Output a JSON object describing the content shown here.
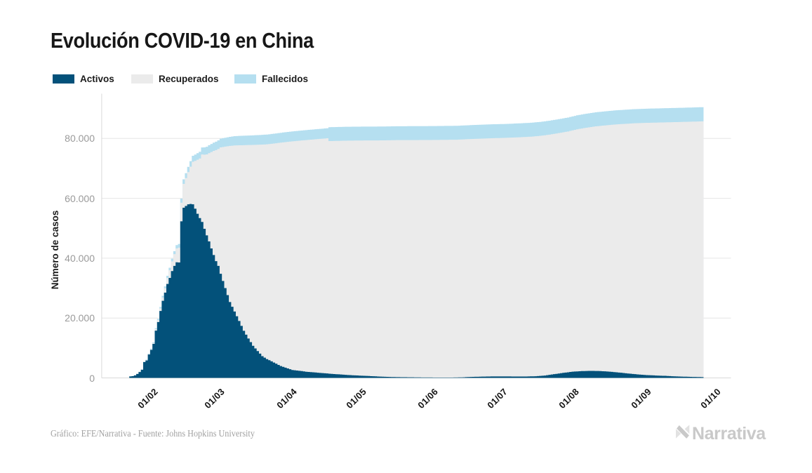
{
  "title": "Evolución COVID-19 en China",
  "legend": {
    "items": [
      {
        "label": "Activos",
        "color": "#03517a"
      },
      {
        "label": "Recuperados",
        "color": "#ebebeb"
      },
      {
        "label": "Fallecidos",
        "color": "#b5dff0"
      }
    ]
  },
  "y_axis": {
    "label": "Número de casos",
    "ticks": [
      "0",
      "20.000",
      "40.000",
      "60.000",
      "80.000"
    ],
    "tick_values": [
      0,
      20000,
      40000,
      60000,
      80000
    ]
  },
  "x_axis": {
    "ticks": [
      {
        "label": "01/02",
        "date": "2020-02-01"
      },
      {
        "label": "01/03",
        "date": "2020-03-01"
      },
      {
        "label": "01/04",
        "date": "2020-04-01"
      },
      {
        "label": "01/05",
        "date": "2020-05-01"
      },
      {
        "label": "01/06",
        "date": "2020-06-01"
      },
      {
        "label": "01/07",
        "date": "2020-07-01"
      },
      {
        "label": "01/08",
        "date": "2020-08-01"
      },
      {
        "label": "01/09",
        "date": "2020-09-01"
      },
      {
        "label": "01/10",
        "date": "2020-10-01"
      }
    ]
  },
  "footer": {
    "credit": "Gráfico: EFE/Narrativa - Fuente: Johns Hopkins University"
  },
  "logo": {
    "text": "Narrativa"
  },
  "chart_data": {
    "type": "bar",
    "stacked": true,
    "title": "Evolución COVID-19 en China",
    "xlabel": "",
    "ylabel": "Número de casos",
    "ylim": [
      0,
      95800
    ],
    "grid": "horizontal",
    "legend_position": "top-left",
    "dates": [
      "2020-01-22",
      "2020-01-23",
      "2020-01-24",
      "2020-01-25",
      "2020-01-26",
      "2020-01-27",
      "2020-01-28",
      "2020-01-29",
      "2020-01-30",
      "2020-01-31",
      "2020-02-01",
      "2020-02-02",
      "2020-02-03",
      "2020-02-04",
      "2020-02-05",
      "2020-02-06",
      "2020-02-07",
      "2020-02-08",
      "2020-02-09",
      "2020-02-10",
      "2020-02-11",
      "2020-02-12",
      "2020-02-13",
      "2020-02-14",
      "2020-02-15",
      "2020-02-16",
      "2020-02-17",
      "2020-02-18",
      "2020-02-19",
      "2020-02-20",
      "2020-02-21",
      "2020-02-22",
      "2020-02-23",
      "2020-02-24",
      "2020-02-25",
      "2020-02-26",
      "2020-02-27",
      "2020-02-28",
      "2020-02-29",
      "2020-03-01",
      "2020-03-02",
      "2020-03-03",
      "2020-03-04",
      "2020-03-05",
      "2020-03-06",
      "2020-03-07",
      "2020-03-08",
      "2020-03-09",
      "2020-03-10",
      "2020-03-11",
      "2020-03-12",
      "2020-03-13",
      "2020-03-14",
      "2020-03-15",
      "2020-03-16",
      "2020-03-17",
      "2020-03-18",
      "2020-03-19",
      "2020-03-20",
      "2020-03-21",
      "2020-03-22",
      "2020-03-23",
      "2020-03-24",
      "2020-03-25",
      "2020-03-26",
      "2020-03-27",
      "2020-03-28",
      "2020-03-29",
      "2020-03-30",
      "2020-03-31",
      "2020-04-01",
      "2020-04-02",
      "2020-04-03",
      "2020-04-04",
      "2020-04-05",
      "2020-04-06",
      "2020-04-07",
      "2020-04-08",
      "2020-04-09",
      "2020-04-10",
      "2020-04-11",
      "2020-04-12",
      "2020-04-13",
      "2020-04-14",
      "2020-04-15",
      "2020-04-16",
      "2020-04-17",
      "2020-04-18",
      "2020-04-19",
      "2020-04-20",
      "2020-04-21",
      "2020-04-22",
      "2020-04-23",
      "2020-04-24",
      "2020-04-25",
      "2020-04-26",
      "2020-04-27",
      "2020-04-28",
      "2020-04-29",
      "2020-04-30",
      "2020-05-01",
      "2020-05-02",
      "2020-05-03",
      "2020-05-04",
      "2020-05-05",
      "2020-05-06",
      "2020-05-07",
      "2020-05-08",
      "2020-05-09",
      "2020-05-10",
      "2020-05-11",
      "2020-05-12",
      "2020-05-13",
      "2020-05-14",
      "2020-05-15",
      "2020-05-16",
      "2020-05-17",
      "2020-05-18",
      "2020-05-19",
      "2020-05-20",
      "2020-05-21",
      "2020-05-22",
      "2020-05-23",
      "2020-05-24",
      "2020-05-25",
      "2020-05-26",
      "2020-05-27",
      "2020-05-28",
      "2020-05-29",
      "2020-05-30",
      "2020-05-31",
      "2020-06-01",
      "2020-06-02",
      "2020-06-03",
      "2020-06-04",
      "2020-06-05",
      "2020-06-06",
      "2020-06-07",
      "2020-06-08",
      "2020-06-09",
      "2020-06-10",
      "2020-06-11",
      "2020-06-12",
      "2020-06-13",
      "2020-06-14",
      "2020-06-15",
      "2020-06-16",
      "2020-06-17",
      "2020-06-18",
      "2020-06-19",
      "2020-06-20",
      "2020-06-21",
      "2020-06-22",
      "2020-06-23",
      "2020-06-24",
      "2020-06-25",
      "2020-06-26",
      "2020-06-27",
      "2020-06-28",
      "2020-06-29",
      "2020-06-30",
      "2020-07-01",
      "2020-07-02",
      "2020-07-03",
      "2020-07-04",
      "2020-07-05",
      "2020-07-06",
      "2020-07-07",
      "2020-07-08",
      "2020-07-09",
      "2020-07-10",
      "2020-07-11",
      "2020-07-12",
      "2020-07-13",
      "2020-07-14",
      "2020-07-15",
      "2020-07-16",
      "2020-07-17",
      "2020-07-18",
      "2020-07-19",
      "2020-07-20",
      "2020-07-21",
      "2020-07-22",
      "2020-07-23",
      "2020-07-24",
      "2020-07-25",
      "2020-07-26",
      "2020-07-27",
      "2020-07-28",
      "2020-07-29",
      "2020-07-30",
      "2020-07-31",
      "2020-08-01",
      "2020-08-02",
      "2020-08-03",
      "2020-08-04",
      "2020-08-05",
      "2020-08-06",
      "2020-08-07",
      "2020-08-08",
      "2020-08-09",
      "2020-08-10",
      "2020-08-11",
      "2020-08-12",
      "2020-08-13",
      "2020-08-14",
      "2020-08-15",
      "2020-08-16",
      "2020-08-17",
      "2020-08-18",
      "2020-08-19",
      "2020-08-20",
      "2020-08-21",
      "2020-08-22",
      "2020-08-23",
      "2020-08-24",
      "2020-08-25",
      "2020-08-26",
      "2020-08-27",
      "2020-08-28",
      "2020-08-29",
      "2020-08-30",
      "2020-08-31",
      "2020-09-01",
      "2020-09-02",
      "2020-09-03",
      "2020-09-04",
      "2020-09-05",
      "2020-09-06",
      "2020-09-07",
      "2020-09-08",
      "2020-09-09",
      "2020-09-10",
      "2020-09-11",
      "2020-09-12",
      "2020-09-13",
      "2020-09-14",
      "2020-09-15",
      "2020-09-16",
      "2020-09-17",
      "2020-09-18",
      "2020-09-19",
      "2020-09-20",
      "2020-09-21",
      "2020-09-22",
      "2020-09-23",
      "2020-09-24",
      "2020-09-25"
    ],
    "series": [
      {
        "name": "Activos",
        "color": "#03517a",
        "values": [
          503,
          595,
          858,
          1325,
          1970,
          2737,
          5277,
          5834,
          7835,
          9375,
          11357,
          15806,
          18677,
          22373,
          25762,
          28477,
          31393,
          33413,
          35705,
          37424,
          38638,
          38560,
          52309,
          56860,
          57452,
          57992,
          58108,
          58002,
          56541,
          54825,
          53389,
          52109,
          49824,
          47634,
          45604,
          43258,
          41075,
          39010,
          37414,
          34794,
          32399,
          30004,
          27678,
          25352,
          23764,
          22177,
          20596,
          19016,
          17378,
          15741,
          14456,
          13171,
          11952,
          10734,
          9850,
          8967,
          8115,
          7263,
          6775,
          6287,
          5918,
          5549,
          5142,
          4735,
          4341,
          3947,
          3692,
          3438,
          3172,
          2906,
          2640,
          2554,
          2467,
          2381,
          2274,
          2166,
          2059,
          1994,
          1928,
          1863,
          1802,
          1742,
          1681,
          1615,
          1549,
          1483,
          1418,
          1354,
          1289,
          1238,
          1188,
          1137,
          1083,
          1029,
          975,
          933,
          892,
          850,
          812,
          774,
          736,
          702,
          668,
          634,
          600,
          558,
          515,
          472,
          430,
          402,
          375,
          348,
          320,
          302,
          285,
          268,
          250,
          240,
          230,
          220,
          210,
          202,
          195,
          188,
          180,
          170,
          160,
          150,
          140,
          137,
          133,
          130,
          126,
          122,
          119,
          115,
          119,
          122,
          126,
          130,
          142,
          155,
          168,
          180,
          215,
          250,
          285,
          320,
          345,
          370,
          395,
          420,
          435,
          450,
          465,
          480,
          486,
          492,
          499,
          505,
          502,
          500,
          498,
          495,
          486,
          478,
          469,
          460,
          462,
          465,
          468,
          470,
          492,
          515,
          538,
          560,
          620,
          680,
          740,
          800,
          912,
          1025,
          1138,
          1250,
          1362,
          1475,
          1588,
          1700,
          1795,
          1890,
          1985,
          2080,
          2130,
          2180,
          2230,
          2280,
          2298,
          2315,
          2332,
          2350,
          2335,
          2320,
          2305,
          2290,
          2238,
          2185,
          2132,
          2080,
          2010,
          1940,
          1870,
          1800,
          1720,
          1640,
          1560,
          1480,
          1402,
          1325,
          1248,
          1170,
          1115,
          1060,
          1005,
          950,
          912,
          875,
          838,
          800,
          772,
          745,
          718,
          690,
          648,
          605,
          562,
          520,
          495,
          470,
          445,
          420,
          398,
          375,
          352,
          330,
          312,
          295,
          278,
          260
        ]
      },
      {
        "name": "Recuperados",
        "color": "#ebebeb",
        "values": [
          28,
          26,
          36,
          40,
          49,
          46,
          101,
          102,
          135,
          212,
          275,
          482,
          614,
          840,
          1115,
          1470,
          1999,
          2589,
          3219,
          3922,
          4636,
          4959,
          6217,
          7982,
          9298,
          10757,
          12462,
          14219,
          15962,
          18076,
          19925,
          22553,
          24756,
          27055,
          29487,
          32204,
          34781,
          37111,
          39072,
          42231,
          44753,
          47276,
          49717,
          52160,
          53827,
          55501,
          57099,
          58696,
          60360,
          62018,
          63324,
          64635,
          65873,
          67110,
          68021,
          68932,
          69811,
          70699,
          71228,
          71756,
          72213,
          72671,
          73168,
          73672,
          74163,
          74654,
          75001,
          75348,
          75706,
          76064,
          76402,
          76560,
          76719,
          76873,
          77050,
          77229,
          77408,
          77542,
          77677,
          77811,
          77936,
          78062,
          78188,
          78317,
          78446,
          78574,
          77706,
          77789,
          77872,
          77942,
          78012,
          78083,
          78157,
          78232,
          78296,
          78347,
          78399,
          78451,
          78496,
          78541,
          78586,
          78622,
          78658,
          78695,
          78731,
          78775,
          78826,
          78876,
          78926,
          78962,
          78997,
          79038,
          79080,
          79113,
          79144,
          79175,
          79196,
          79210,
          79224,
          79238,
          79252,
          79261,
          79270,
          79278,
          79288,
          79299,
          79315,
          79330,
          79345,
          79354,
          79362,
          79371,
          79385,
          79399,
          79411,
          79425,
          79431,
          79434,
          79437,
          79438,
          79433,
          79426,
          79452,
          79478,
          79481,
          79485,
          79489,
          79484,
          79488,
          79493,
          79498,
          79503,
          79519,
          79533,
          79549,
          79564,
          79589,
          79604,
          79618,
          79632,
          79656,
          79679,
          79711,
          79744,
          79783,
          79821,
          79864,
          79908,
          79941,
          79973,
          80011,
          80050,
          80067,
          80085,
          80131,
          80178,
          80187,
          80196,
          80238,
          80280,
          80271,
          80259,
          80274,
          80288,
          80302,
          80316,
          80340,
          80365,
          80406,
          80447,
          80534,
          80622,
          80755,
          80887,
          80970,
          81053,
          81168,
          81285,
          81381,
          81476,
          81603,
          81730,
          81823,
          81915,
          82044,
          82175,
          82301,
          82425,
          82568,
          82711,
          82831,
          82953,
          83084,
          83215,
          83341,
          83467,
          83590,
          83714,
          83821,
          83930,
          84016,
          84103,
          84188,
          84274,
          84330,
          84387,
          84442,
          84499,
          84546,
          84593,
          84639,
          84687,
          84748,
          84811,
          84873,
          84935,
          84979,
          85024,
          85070,
          85117,
          85160,
          85205,
          85249,
          85294,
          85334,
          85373,
          85412,
          85453
        ]
      },
      {
        "name": "Fallecidos",
        "color": "#b5dff0",
        "values": [
          17,
          22,
          26,
          41,
          56,
          94,
          131,
          151,
          171,
          215,
          259,
          342,
          425,
          494,
          563,
          640,
          718,
          812,
          905,
          1008,
          1112,
          1240,
          1369,
          1516,
          1663,
          1764,
          1864,
          1990,
          2116,
          2176,
          2236,
          2339,
          2442,
          2552,
          2663,
          2704,
          2744,
          2807,
          2870,
          2907,
          2944,
          2981,
          3011,
          3040,
          3070,
          3092,
          3114,
          3136,
          3149,
          3163,
          3176,
          3185,
          3195,
          3204,
          3215,
          3226,
          3237,
          3248,
          3255,
          3262,
          3269,
          3276,
          3281,
          3286,
          3291,
          3296,
          3299,
          3302,
          3306,
          3309,
          3314,
          3320,
          3325,
          3330,
          3332,
          3334,
          3335,
          3337,
          3338,
          3340,
          3342,
          3343,
          3344,
          3344,
          3345,
          3346,
          4636,
          4636,
          4637,
          4637,
          4638,
          4638,
          4638,
          4638,
          4638,
          4638,
          4637,
          4637,
          4637,
          4637,
          4637,
          4637,
          4637,
          4637,
          4637,
          4637,
          4637,
          4638,
          4638,
          4638,
          4638,
          4638,
          4638,
          4638,
          4638,
          4638,
          4639,
          4639,
          4640,
          4640,
          4640,
          4641,
          4641,
          4642,
          4642,
          4643,
          4643,
          4643,
          4644,
          4644,
          4645,
          4645,
          4645,
          4645,
          4646,
          4646,
          4646,
          4646,
          4646,
          4647,
          4647,
          4647,
          4647,
          4648,
          4648,
          4648,
          4648,
          4648,
          4649,
          4649,
          4649,
          4649,
          4649,
          4650,
          4650,
          4650,
          4650,
          4650,
          4650,
          4651,
          4651,
          4651,
          4651,
          4651,
          4651,
          4651,
          4652,
          4652,
          4652,
          4652,
          4652,
          4652,
          4653,
          4653,
          4653,
          4654,
          4654,
          4654,
          4654,
          4655,
          4655,
          4656,
          4656,
          4657,
          4658,
          4659,
          4660,
          4660,
          4661,
          4663,
          4666,
          4668,
          4670,
          4673,
          4675,
          4677,
          4679,
          4680,
          4682,
          4684,
          4687,
          4690,
          4692,
          4695,
          4698,
          4700,
          4702,
          4705,
          4707,
          4709,
          4711,
          4712,
          4714,
          4715,
          4717,
          4718,
          4720,
          4721,
          4723,
          4724,
          4725,
          4726,
          4728,
          4729,
          4730,
          4730,
          4731,
          4731,
          4732,
          4732,
          4733,
          4733,
          4734,
          4734,
          4735,
          4735,
          4736,
          4736,
          4737,
          4737,
          4738,
          4738,
          4739,
          4739,
          4740,
          4740,
          4741,
          4741
        ]
      }
    ]
  }
}
